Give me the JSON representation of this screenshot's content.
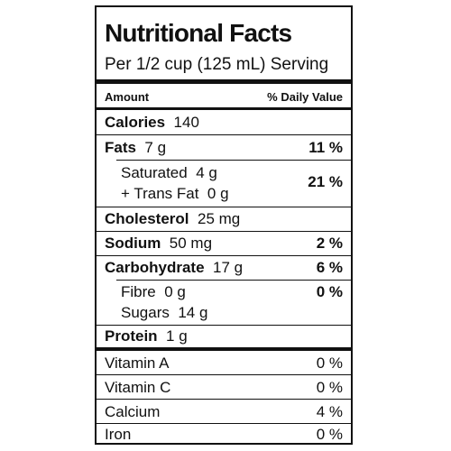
{
  "title": "Nutritional Facts",
  "serving": "Per 1/2 cup (125 mL) Serving",
  "header": {
    "amount": "Amount",
    "daily_value": "% Daily Value"
  },
  "rows": {
    "calories": {
      "name": "Calories",
      "amount": "140"
    },
    "fats": {
      "name": "Fats",
      "amount": "7 g",
      "dv": "11 %"
    },
    "saturated": {
      "name": "Saturated",
      "amount": "4 g"
    },
    "trans": {
      "name": "+ Trans Fat",
      "amount": "0 g"
    },
    "sat_trans_dv": "21 %",
    "cholesterol": {
      "name": "Cholesterol",
      "amount": "25 mg"
    },
    "sodium": {
      "name": "Sodium",
      "amount": "50 mg",
      "dv": "2 %"
    },
    "carbohydrate": {
      "name": "Carbohydrate",
      "amount": "17 g",
      "dv": "6 %"
    },
    "fibre": {
      "name": "Fibre",
      "amount": "0 g"
    },
    "sugars": {
      "name": "Sugars",
      "amount": "14 g"
    },
    "fibre_sugars_dv": "0 %",
    "protein": {
      "name": "Protein",
      "amount": "1 g"
    }
  },
  "vitamins": [
    {
      "name": "Vitamin A",
      "dv": "0 %"
    },
    {
      "name": "Vitamin C",
      "dv": "0 %"
    },
    {
      "name": "Calcium",
      "dv": "4 %"
    },
    {
      "name": "Iron",
      "dv": "0 %"
    }
  ]
}
